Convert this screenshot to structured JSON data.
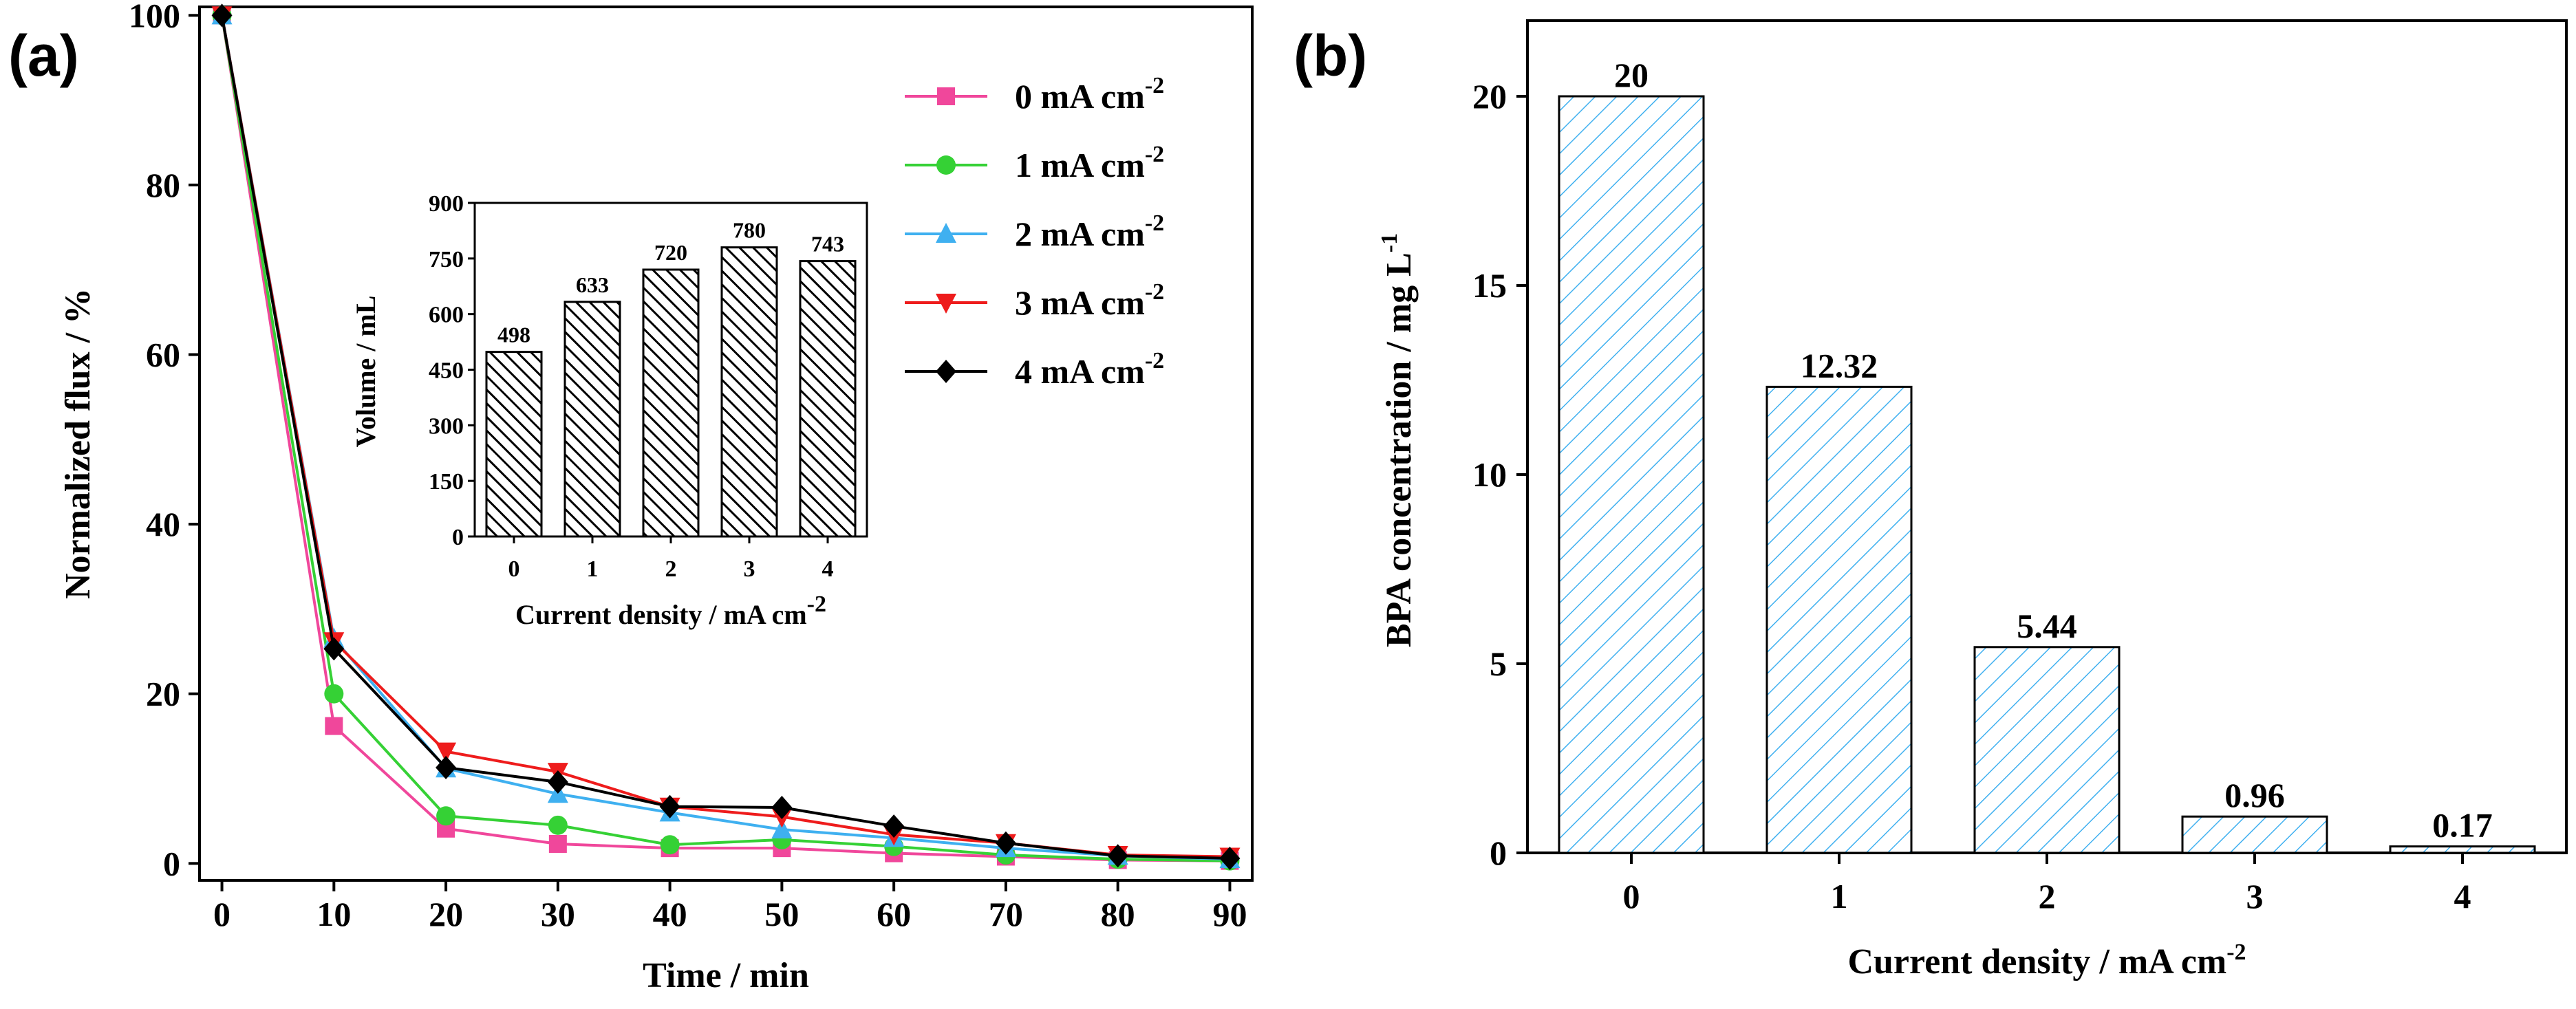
{
  "panel_a_label": "(a)",
  "panel_b_label": "(b)",
  "chart_data": [
    {
      "type": "line",
      "panel": "(a)",
      "xlabel": "Time / min",
      "ylabel": "Normalized flux / %",
      "xlim": [
        -2,
        92
      ],
      "ylim": [
        -2,
        101
      ],
      "xticks": [
        0,
        10,
        20,
        30,
        40,
        50,
        60,
        70,
        80,
        90
      ],
      "yticks": [
        0,
        20,
        40,
        60,
        80,
        100
      ],
      "x": [
        0,
        10,
        20,
        30,
        40,
        50,
        60,
        70,
        80,
        90
      ],
      "series": [
        {
          "name": "0 mA cm-2",
          "label": "0 mA cm",
          "sup": "-2",
          "marker": "square",
          "color": "#f0479b",
          "values": [
            100,
            16.2,
            4.1,
            2.3,
            1.8,
            1.8,
            1.2,
            0.8,
            0.4,
            0.3
          ]
        },
        {
          "name": "1 mA cm-2",
          "label": "1 mA cm",
          "sup": "-2",
          "marker": "circle",
          "color": "#35d135",
          "values": [
            100,
            20,
            5.6,
            4.5,
            2.2,
            2.8,
            2.0,
            1.0,
            0.5,
            0.3
          ]
        },
        {
          "name": "2 mA cm-2",
          "label": "2 mA cm",
          "sup": "-2",
          "marker": "triangle-up",
          "color": "#3fb0f0",
          "values": [
            100,
            26.5,
            11.2,
            8.2,
            6.0,
            4.0,
            3.0,
            1.8,
            0.9,
            0.5
          ]
        },
        {
          "name": "3 mA cm-2",
          "label": "3 mA cm",
          "sup": "-2",
          "marker": "triangle-down",
          "color": "#ee1c1c",
          "values": [
            100,
            26.2,
            13.2,
            10.8,
            6.7,
            5.5,
            3.4,
            2.4,
            1.0,
            0.8
          ]
        },
        {
          "name": "4 mA cm-2",
          "label": "4 mA cm",
          "sup": "-2",
          "marker": "diamond",
          "color": "#000000",
          "values": [
            100,
            25.3,
            11.3,
            9.6,
            6.7,
            6.6,
            4.4,
            2.4,
            0.9,
            0.6
          ]
        }
      ],
      "legend_position": "top-right",
      "inset": {
        "type": "bar",
        "xlabel": "Current density / mA cm",
        "xlabel_sup": "-2",
        "ylabel": "Volume / mL",
        "categories": [
          "0",
          "1",
          "2",
          "3",
          "4"
        ],
        "values": [
          498,
          633,
          720,
          780,
          743
        ],
        "value_labels": [
          "498",
          "633",
          "720",
          "780",
          "743"
        ],
        "ylim": [
          0,
          900
        ],
        "yticks": [
          "0",
          "150",
          "300",
          "450",
          "600",
          "750",
          "900"
        ],
        "pattern": "diagonal hatch (black)"
      }
    },
    {
      "type": "bar",
      "panel": "(b)",
      "xlabel": "Current density / mA cm",
      "xlabel_sup": "-2",
      "ylabel": "BPA concentration /  mg L",
      "ylabel_sup": "-1",
      "categories": [
        "0",
        "1",
        "2",
        "3",
        "4"
      ],
      "values": [
        20,
        12.32,
        5.44,
        0.96,
        0.17
      ],
      "value_labels": [
        "20",
        "12.32",
        "5.44",
        "0.96",
        "0.17"
      ],
      "ylim": [
        0,
        22
      ],
      "yticks": [
        "0",
        "5",
        "10",
        "15",
        "20"
      ],
      "bar_color": "#3fb0f0",
      "pattern": "diagonal hatch (blue)"
    }
  ]
}
